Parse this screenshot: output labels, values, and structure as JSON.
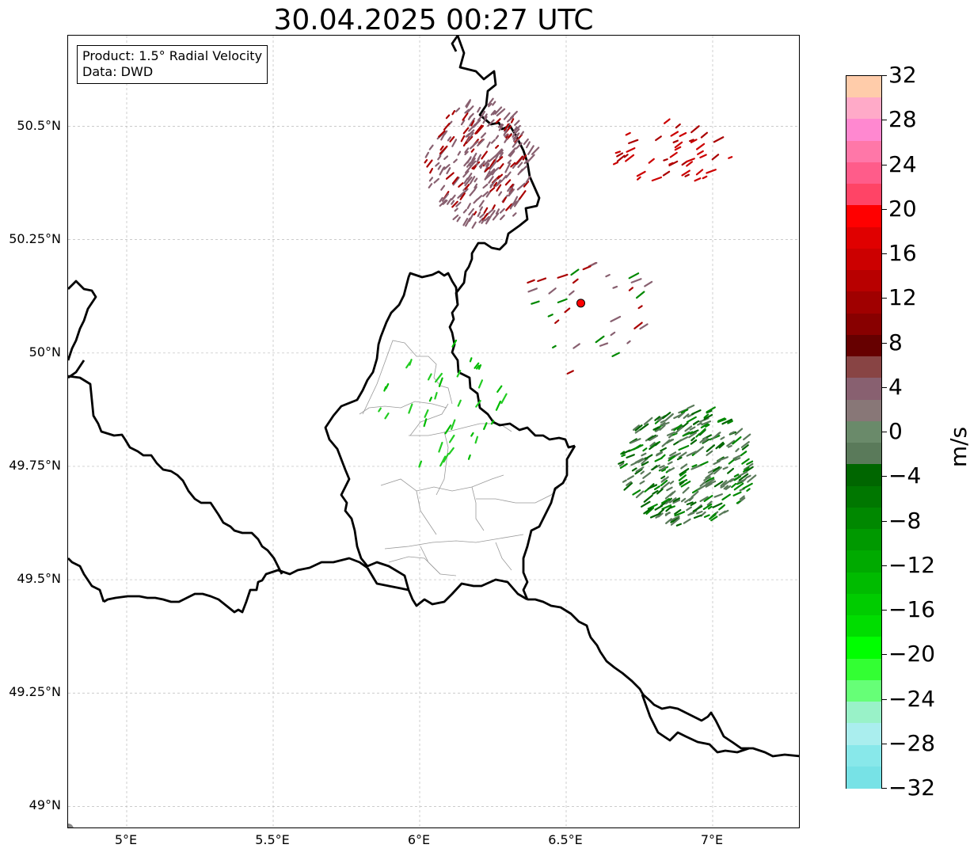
{
  "title": "30.04.2025 00:27 UTC",
  "infobox": {
    "product": "Product: 1.5° Radial Velocity",
    "source": "Data: DWD"
  },
  "axes": {
    "lat_ticks": [
      "50.5°N",
      "50.25°N",
      "50°N",
      "49.75°N",
      "49.5°N",
      "49.25°N",
      "49°N"
    ],
    "lat_values": [
      50.5,
      50.25,
      50.0,
      49.75,
      49.5,
      49.25,
      49.0
    ],
    "lon_ticks": [
      "5°E",
      "5.5°E",
      "6°E",
      "6.5°E",
      "7°E"
    ],
    "lon_values": [
      5.0,
      5.5,
      6.0,
      6.5,
      7.0
    ],
    "lat_range": [
      48.95,
      50.7
    ],
    "lon_range": [
      4.8,
      7.3
    ],
    "grid": "dashed-light-gray"
  },
  "radar_site": {
    "lat": 50.11,
    "lon": 6.55,
    "color": "#ff0000"
  },
  "colorbar": {
    "unit": "m/s",
    "range": [
      -32,
      32
    ],
    "tick_labels": [
      "32",
      "28",
      "24",
      "20",
      "16",
      "12",
      "8",
      "4",
      "0",
      "−4",
      "−8",
      "−12",
      "−16",
      "−20",
      "−24",
      "−28",
      "−32"
    ],
    "colors_top_to_bottom": [
      "#ffccaa",
      "#ffaac8",
      "#ff88d0",
      "#ff77a8",
      "#ff5c8a",
      "#ff4466",
      "#ff0000",
      "#e00000",
      "#cc0000",
      "#b80000",
      "#a00000",
      "#880000",
      "#660000",
      "#884444",
      "#886070",
      "#887777",
      "#6a8a6a",
      "#5a7a5a",
      "#006600",
      "#007700",
      "#008800",
      "#009900",
      "#00aa00",
      "#00bb00",
      "#00cc00",
      "#00dd00",
      "#00ff00",
      "#33ff33",
      "#66ff77",
      "#99f2c8",
      "#aaeeee",
      "#88e8ea",
      "#77e2e6"
    ]
  },
  "echo_colors": {
    "inbound_strong": "#008800",
    "inbound_weak": "#5a7a5a",
    "outbound_weak": "#886070",
    "outbound_strong": "#aa0000",
    "light_green": "#22cc22"
  }
}
